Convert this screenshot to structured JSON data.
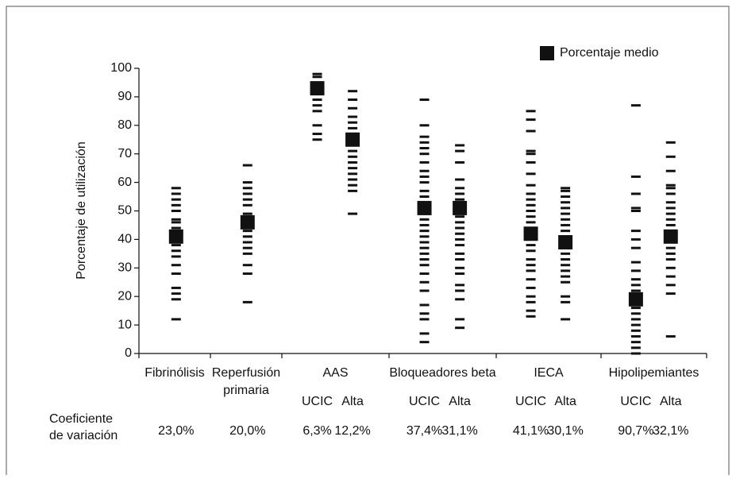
{
  "chart_data": {
    "type": "strip",
    "y_label": "Porcentaje de utilización",
    "ylim": [
      0,
      100
    ],
    "yticks": [
      0,
      10,
      20,
      30,
      40,
      50,
      60,
      70,
      80,
      90,
      100
    ],
    "legend": "Porcentaje medio",
    "color": "#111111",
    "cv_label": [
      "Coeficiente",
      "de variación"
    ],
    "groups": [
      {
        "label": [
          "Fibrinólisis"
        ],
        "columns": [
          {
            "values": [
              12,
              19,
              21,
              23,
              28,
              31,
              34,
              36,
              38,
              40,
              42,
              44,
              46,
              47,
              50,
              52,
              54,
              56,
              58
            ],
            "mean": 41,
            "cv": 23.0,
            "cv_label": "23,0%"
          }
        ]
      },
      {
        "label": [
          "Reperfusión",
          "primaria"
        ],
        "columns": [
          {
            "values": [
              18,
              28,
              31,
              35,
              37,
              39,
              41,
              43,
              45,
              47,
              49,
              52,
              54,
              56,
              58,
              60,
              66
            ],
            "mean": 46,
            "cv": 20.0,
            "cv_label": "20,0%"
          }
        ]
      },
      {
        "label": [
          "AAS"
        ],
        "columns": [
          {
            "label": "UCIC",
            "values": [
              75,
              77,
              80,
              85,
              87,
              89,
              91,
              93,
              95,
              97,
              98
            ],
            "mean": 93,
            "cv": 6.3,
            "cv_label": "6,3%"
          },
          {
            "label": "Alta",
            "values": [
              49,
              57,
              59,
              61,
              63,
              65,
              67,
              69,
              71,
              73,
              75,
              77,
              79,
              81,
              83,
              86,
              89,
              92
            ],
            "mean": 75,
            "cv": 12.2,
            "cv_label": "12,2%"
          }
        ]
      },
      {
        "label": [
          "Bloqueadores beta"
        ],
        "columns": [
          {
            "label": "UCIC",
            "values": [
              4,
              7,
              12,
              14,
              17,
              22,
              25,
              28,
              31,
              33,
              35,
              37,
              39,
              41,
              43,
              45,
              47,
              49,
              51,
              53,
              55,
              57,
              60,
              62,
              64,
              67,
              70,
              72,
              74,
              76,
              80,
              89
            ],
            "mean": 51,
            "cv": 37.4,
            "cv_label": "37,4%"
          },
          {
            "label": "Alta",
            "values": [
              9,
              12,
              19,
              22,
              24,
              28,
              30,
              33,
              35,
              38,
              40,
              42,
              44,
              46,
              48,
              50,
              52,
              54,
              56,
              58,
              61,
              67,
              71,
              73
            ],
            "mean": 51,
            "cv": 31.1,
            "cv_label": "31,1%"
          }
        ]
      },
      {
        "label": [
          "IECA"
        ],
        "columns": [
          {
            "label": "UCIC",
            "values": [
              13,
              15,
              18,
              20,
              23,
              26,
              29,
              31,
              33,
              36,
              38,
              40,
              42,
              44,
              46,
              48,
              50,
              52,
              54,
              56,
              59,
              63,
              67,
              70,
              71,
              78,
              82,
              85
            ],
            "mean": 42,
            "cv": 41.1,
            "cv_label": "41,1%"
          },
          {
            "label": "Alta",
            "values": [
              12,
              18,
              20,
              25,
              27,
              29,
              31,
              33,
              35,
              37,
              39,
              41,
              43,
              45,
              47,
              49,
              51,
              53,
              55,
              57,
              58
            ],
            "mean": 39,
            "cv": 30.1,
            "cv_label": "30,1%"
          }
        ]
      },
      {
        "label": [
          "Hipolipemiantes"
        ],
        "columns": [
          {
            "label": "UCIC",
            "values": [
              0,
              2,
              4,
              6,
              8,
              10,
              12,
              14,
              16,
              18,
              20,
              22,
              24,
              26,
              29,
              32,
              37,
              40,
              43,
              50,
              51,
              56,
              62,
              87
            ],
            "mean": 19,
            "cv": 90.7,
            "cv_label": "90,7%"
          },
          {
            "label": "Alta",
            "values": [
              6,
              21,
              24,
              27,
              30,
              33,
              35,
              37,
              39,
              41,
              43,
              45,
              47,
              49,
              51,
              53,
              56,
              58,
              59,
              64,
              69,
              74
            ],
            "mean": 41,
            "cv": 32.1,
            "cv_label": "32,1%"
          }
        ]
      }
    ]
  }
}
